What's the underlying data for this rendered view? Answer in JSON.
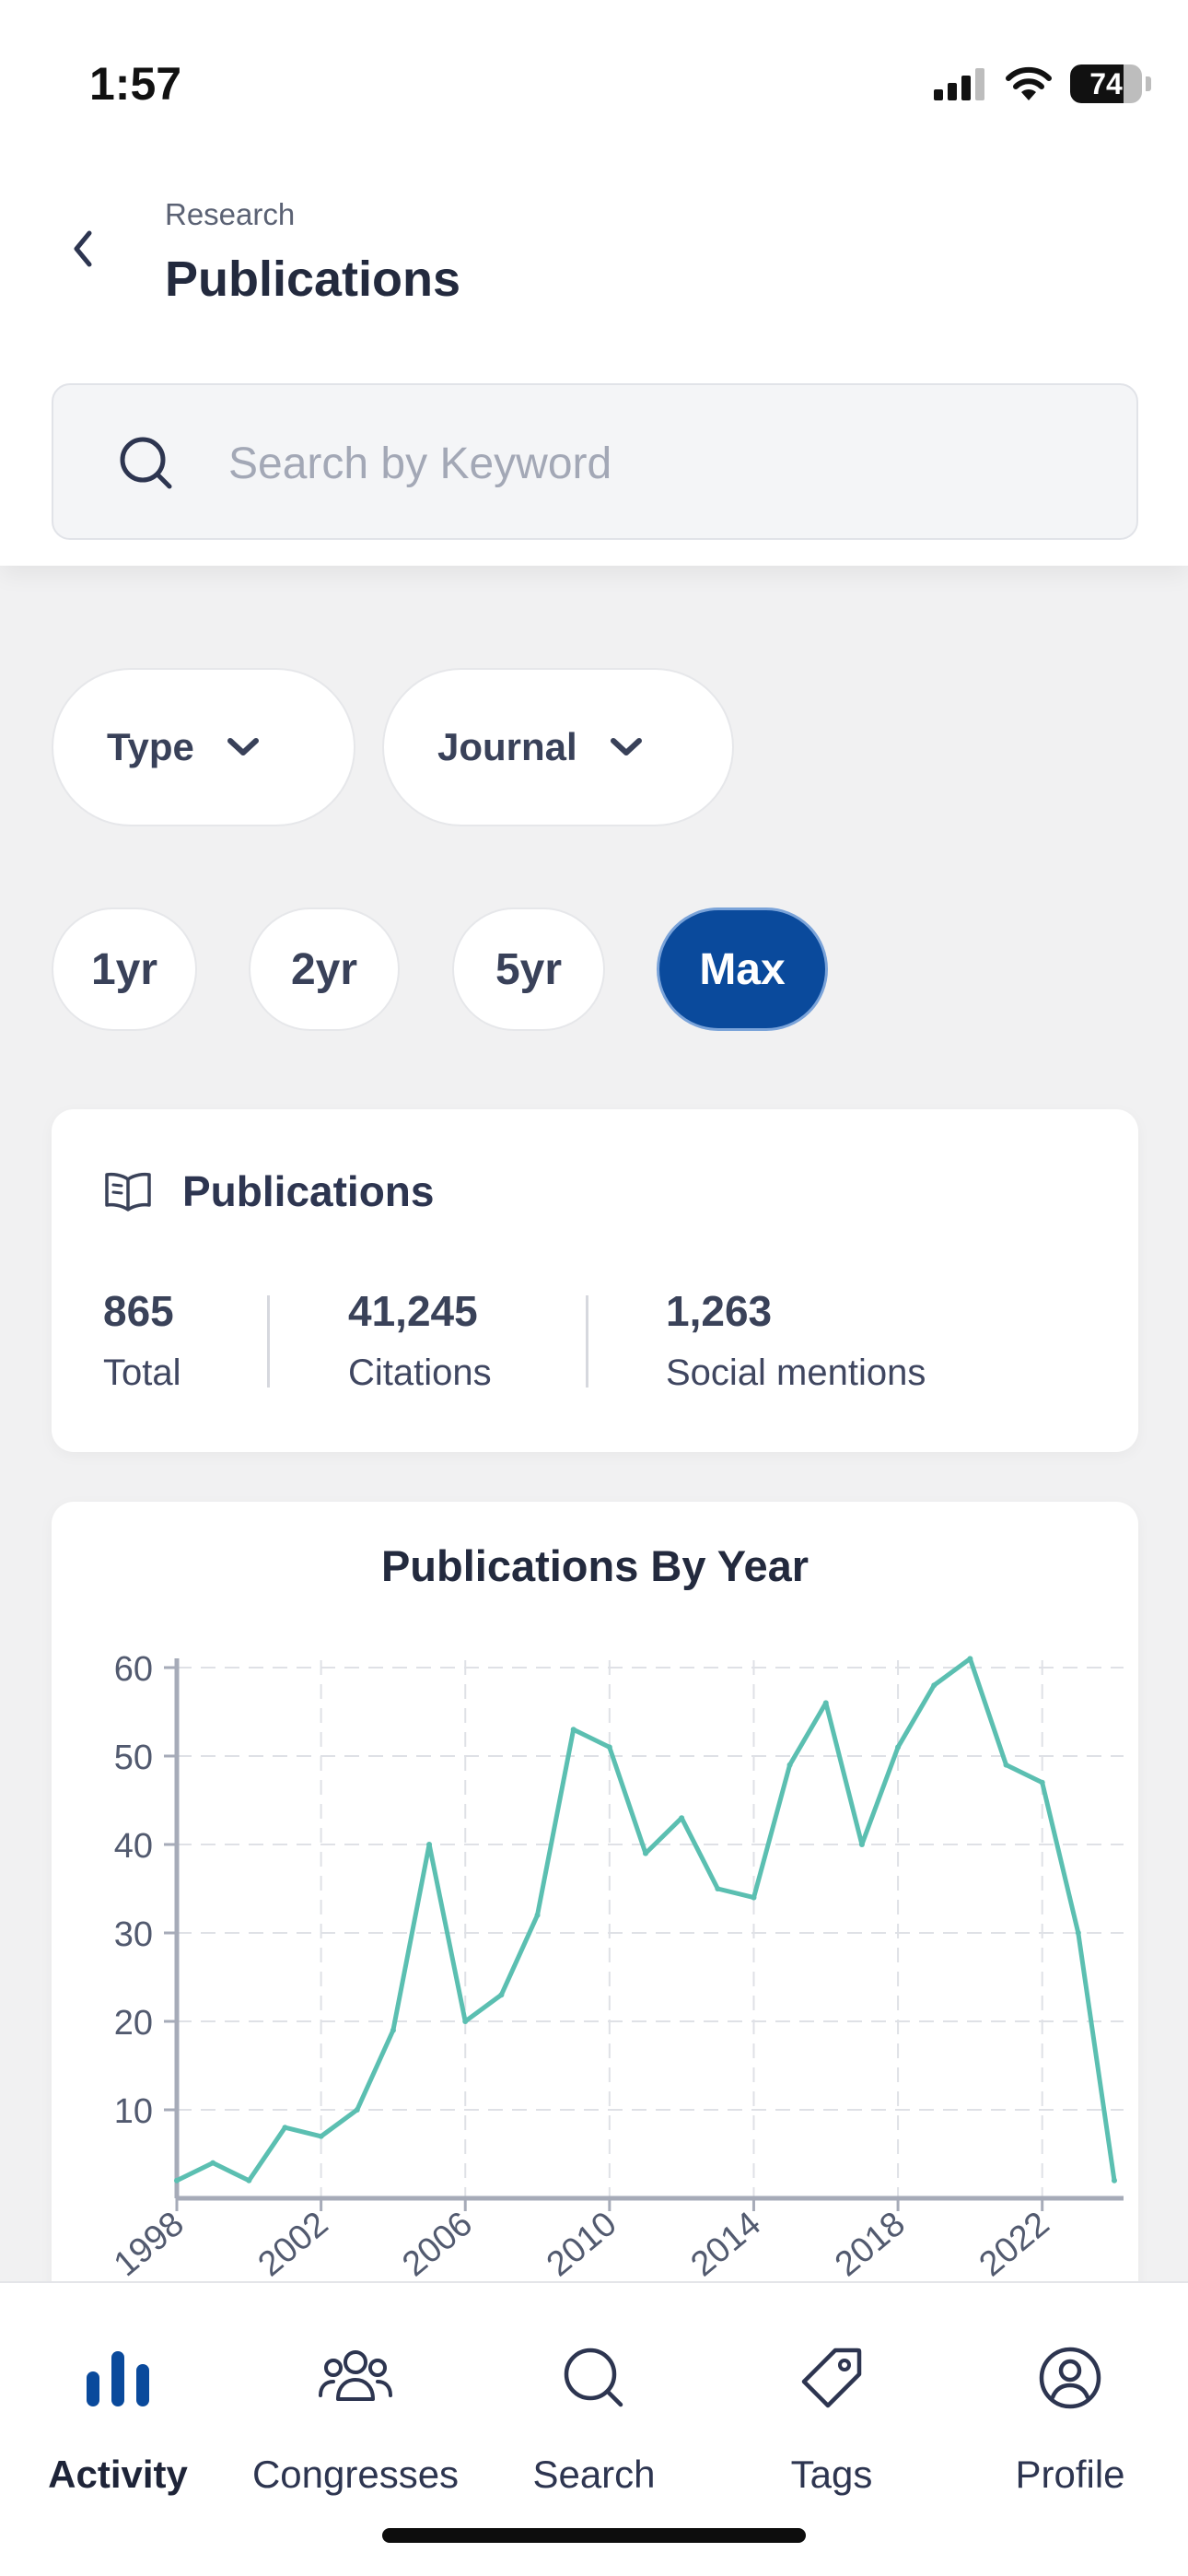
{
  "status_bar": {
    "time": "1:57",
    "battery": "74",
    "battery_level": 0.74
  },
  "header": {
    "breadcrumb": "Research",
    "title": "Publications"
  },
  "search": {
    "placeholder": "Search by Keyword",
    "value": ""
  },
  "filters": [
    {
      "label": "Type"
    },
    {
      "label": "Journal"
    }
  ],
  "ranges": [
    {
      "label": "1yr",
      "active": false
    },
    {
      "label": "2yr",
      "active": false
    },
    {
      "label": "5yr",
      "active": false
    },
    {
      "label": "Max",
      "active": true
    }
  ],
  "summary": {
    "title": "Publications",
    "stats": [
      {
        "value": "865",
        "label": "Total"
      },
      {
        "value": "41,245",
        "label": "Citations"
      },
      {
        "value": "1,263",
        "label": "Social mentions"
      }
    ]
  },
  "colors": {
    "accent": "#0a4a9c",
    "line": "#5bbfb1",
    "axis": "#a6abb8"
  },
  "chart_data": {
    "type": "line",
    "title": "Publications By Year",
    "xlabel": "",
    "ylabel": "",
    "x": [
      1998,
      1999,
      2000,
      2001,
      2002,
      2003,
      2004,
      2005,
      2006,
      2007,
      2008,
      2009,
      2010,
      2011,
      2012,
      2013,
      2014,
      2015,
      2016,
      2017,
      2018,
      2019,
      2020,
      2021,
      2022,
      2023,
      2024
    ],
    "series": [
      {
        "values": [
          2,
          4,
          2,
          8,
          7,
          10,
          19,
          40,
          20,
          23,
          32,
          53,
          51,
          39,
          43,
          35,
          34,
          49,
          56,
          40,
          51,
          58,
          61,
          49,
          47,
          30,
          2
        ]
      }
    ],
    "y_ticks": [
      10,
      20,
      30,
      40,
      50,
      60
    ],
    "x_ticks": [
      1998,
      2002,
      2006,
      2010,
      2014,
      2018,
      2022
    ],
    "ylim": [
      0,
      60
    ],
    "xlim": [
      1998,
      2024
    ],
    "grid": true,
    "legend": "none"
  },
  "bottom_nav": [
    {
      "label": "Activity",
      "icon": "bar-chart-icon",
      "active": true
    },
    {
      "label": "Congresses",
      "icon": "people-group-icon",
      "active": false
    },
    {
      "label": "Search",
      "icon": "search-icon",
      "active": false
    },
    {
      "label": "Tags",
      "icon": "tag-icon",
      "active": false
    },
    {
      "label": "Profile",
      "icon": "profile-icon",
      "active": false
    }
  ]
}
